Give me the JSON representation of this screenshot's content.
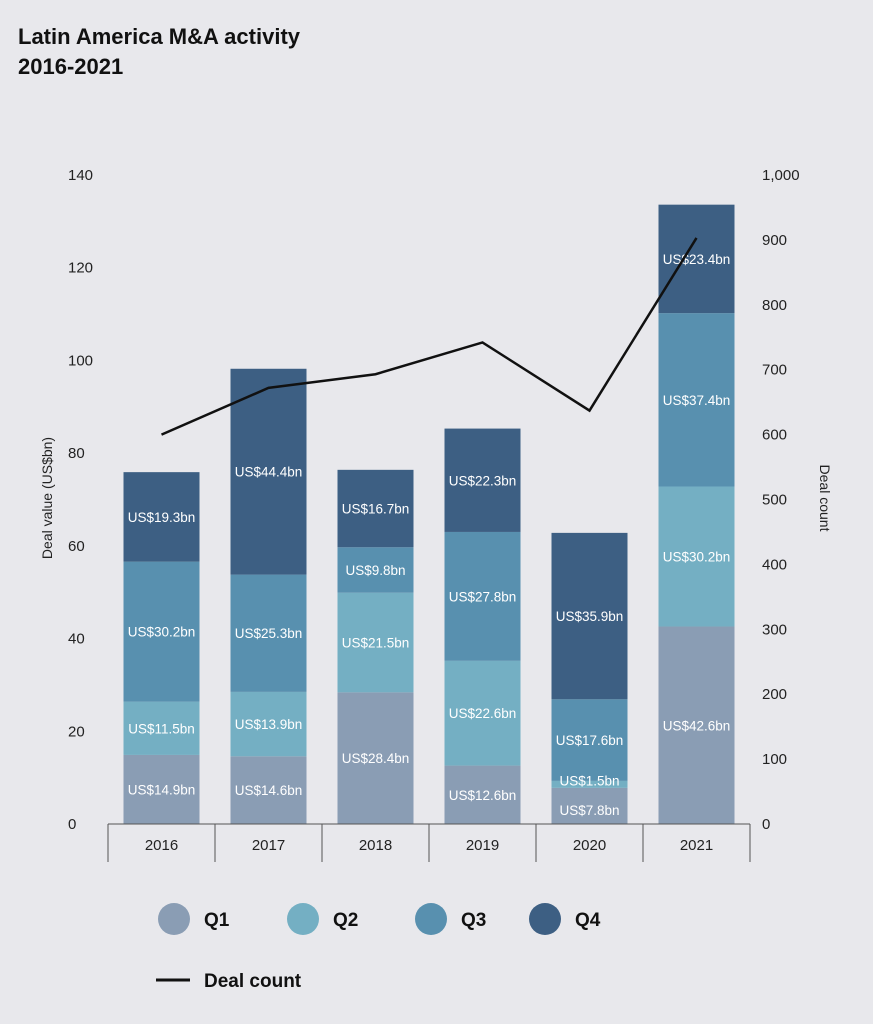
{
  "chart_data": {
    "type": "bar",
    "stacked": true,
    "title": [
      "Latin America M&A activity",
      "2016-2021"
    ],
    "categories": [
      "2016",
      "2017",
      "2018",
      "2019",
      "2020",
      "2021"
    ],
    "ylabel": "Deal value (US$bn)",
    "y2label": "Deal count",
    "ylim": [
      0,
      140
    ],
    "yticks": [
      "0",
      "20",
      "40",
      "60",
      "80",
      "100",
      "120",
      "140"
    ],
    "y2lim": [
      0,
      1000
    ],
    "y2ticks": [
      "0",
      "100",
      "200",
      "300",
      "400",
      "500",
      "600",
      "700",
      "800",
      "900",
      "1,000"
    ],
    "series": [
      {
        "name": "Q1",
        "color": "#8a9db4",
        "values": [
          14.9,
          14.6,
          28.4,
          12.6,
          7.8,
          42.6
        ],
        "labels": [
          "US$14.9bn",
          "US$14.6bn",
          "US$28.4bn",
          "US$12.6bn",
          "US$7.8bn",
          "US$42.6bn"
        ]
      },
      {
        "name": "Q2",
        "color": "#74afc3",
        "values": [
          11.5,
          13.9,
          21.5,
          22.6,
          1.5,
          30.2
        ],
        "labels": [
          "US$11.5bn",
          "US$13.9bn",
          "US$21.5bn",
          "US$22.6bn",
          "US$1.5bn",
          "US$30.2bn"
        ]
      },
      {
        "name": "Q3",
        "color": "#5890af",
        "values": [
          30.2,
          25.3,
          9.8,
          27.8,
          17.6,
          37.4
        ],
        "labels": [
          "US$30.2bn",
          "US$25.3bn",
          "US$9.8bn",
          "US$27.8bn",
          "US$17.6bn",
          "US$37.4bn"
        ]
      },
      {
        "name": "Q4",
        "color": "#3d5f83",
        "values": [
          19.3,
          44.4,
          16.7,
          22.3,
          35.9,
          23.4
        ],
        "labels": [
          "US$19.3bn",
          "US$44.4bn",
          "US$16.7bn",
          "US$22.3bn",
          "US$35.9bn",
          "US$23.4bn"
        ]
      }
    ],
    "line": {
      "name": "Deal count",
      "color": "#111111",
      "values": [
        600,
        672,
        693,
        742,
        637,
        903
      ]
    },
    "legend": [
      "Q1",
      "Q2",
      "Q3",
      "Q4",
      "Deal count"
    ],
    "grid": false,
    "legend_position": "bottom"
  }
}
